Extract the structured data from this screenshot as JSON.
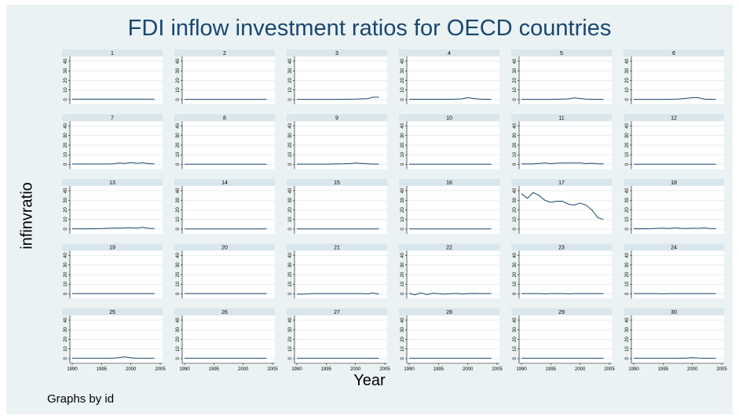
{
  "chart_data": {
    "type": "line",
    "title": "FDI inflow investment ratios for OECD countries",
    "xlabel": "Year",
    "ylabel": "infinvratio",
    "note": "Graphs by id",
    "xlim": [
      1990,
      2005
    ],
    "ylim": [
      0,
      40
    ],
    "x_ticks": [
      1990,
      1995,
      2000,
      2005
    ],
    "y_ticks": [
      0,
      10,
      20,
      30,
      40
    ],
    "grid": true,
    "line_color": "#1a476f",
    "panel_background": "#ffffff",
    "title_strip_color": "#d9e6eb",
    "background_color": "#eaf2f3",
    "years": [
      1990,
      1991,
      1992,
      1993,
      1994,
      1995,
      1996,
      1997,
      1998,
      1999,
      2000,
      2001,
      2002,
      2003,
      2004
    ],
    "panels": [
      {
        "id": "1",
        "values": [
          0.5,
          0.5,
          0.5,
          0.5,
          0.5,
          0.5,
          0.5,
          0.5,
          0.5,
          0.5,
          0.5,
          0.5,
          0.5,
          0.5,
          0.5
        ]
      },
      {
        "id": "2",
        "values": [
          0.3,
          0.3,
          0.3,
          0.3,
          0.3,
          0.3,
          0.3,
          0.3,
          0.3,
          0.3,
          0.3,
          0.3,
          0.3,
          0.3,
          0.3
        ]
      },
      {
        "id": "3",
        "values": [
          0.3,
          0.3,
          0.3,
          0.3,
          0.3,
          0.3,
          0.3,
          0.3,
          0.4,
          0.5,
          0.6,
          0.8,
          1,
          2.5,
          2.5
        ]
      },
      {
        "id": "4",
        "values": [
          0.4,
          0.4,
          0.4,
          0.4,
          0.4,
          0.4,
          0.4,
          0.4,
          0.6,
          0.8,
          2,
          1.2,
          0.6,
          0.4,
          0.4
        ]
      },
      {
        "id": "5",
        "values": [
          0.3,
          0.3,
          0.3,
          0.3,
          0.3,
          0.3,
          0.4,
          0.6,
          0.8,
          1.8,
          1.2,
          0.6,
          0.4,
          0.4,
          0.3
        ]
      },
      {
        "id": "6",
        "values": [
          0.3,
          0.3,
          0.3,
          0.3,
          0.3,
          0.3,
          0.4,
          0.5,
          0.8,
          1.5,
          2,
          2,
          0.6,
          0.4,
          0.3
        ]
      },
      {
        "id": "7",
        "values": [
          0.4,
          0.4,
          0.4,
          0.4,
          0.4,
          0.4,
          0.5,
          0.6,
          1.5,
          1,
          1.8,
          1,
          1.6,
          0.8,
          0.5
        ]
      },
      {
        "id": "8",
        "values": [
          0.2,
          0.2,
          0.2,
          0.2,
          0.2,
          0.2,
          0.2,
          0.2,
          0.2,
          0.2,
          0.2,
          0.2,
          0.2,
          0.2,
          0.2
        ]
      },
      {
        "id": "9",
        "values": [
          0.3,
          0.3,
          0.3,
          0.3,
          0.3,
          0.3,
          0.4,
          0.5,
          0.6,
          0.8,
          1.5,
          1,
          0.6,
          0.4,
          0.3
        ]
      },
      {
        "id": "10",
        "values": [
          0.2,
          0.2,
          0.2,
          0.2,
          0.2,
          0.2,
          0.2,
          0.2,
          0.2,
          0.2,
          0.2,
          0.2,
          0.2,
          0.2,
          0.2
        ]
      },
      {
        "id": "11",
        "values": [
          0.5,
          0.5,
          0.5,
          1,
          1.5,
          0.8,
          1.2,
          1.5,
          1.5,
          1.5,
          1.5,
          0.8,
          1.2,
          0.6,
          0.5
        ]
      },
      {
        "id": "12",
        "values": [
          0.2,
          0.2,
          0.2,
          0.2,
          0.2,
          0.2,
          0.2,
          0.2,
          0.2,
          0.2,
          0.2,
          0.2,
          0.2,
          0.2,
          0.2
        ]
      },
      {
        "id": "13",
        "values": [
          0.3,
          0.3,
          0.3,
          0.4,
          0.5,
          0.6,
          0.8,
          1,
          1,
          1.2,
          1.5,
          1,
          1.8,
          0.8,
          0.5
        ]
      },
      {
        "id": "14",
        "values": [
          0.2,
          0.2,
          0.2,
          0.2,
          0.2,
          0.2,
          0.2,
          0.2,
          0.2,
          0.2,
          0.2,
          0.2,
          0.2,
          0.2,
          0.2
        ]
      },
      {
        "id": "15",
        "values": [
          0.2,
          0.2,
          0.2,
          0.2,
          0.2,
          0.2,
          0.2,
          0.2,
          0.2,
          0.2,
          0.2,
          0.2,
          0.2,
          0.2,
          0.2
        ]
      },
      {
        "id": "16",
        "values": [
          0.2,
          0.2,
          0.2,
          0.2,
          0.2,
          0.2,
          0.2,
          0.2,
          0.2,
          0.2,
          0.2,
          0.2,
          0.2,
          0.2,
          0.2
        ]
      },
      {
        "id": "17",
        "values": [
          37,
          32,
          38,
          35,
          30,
          28,
          29,
          29,
          26,
          25,
          27,
          25,
          20,
          12,
          10
        ]
      },
      {
        "id": "18",
        "values": [
          0.4,
          0.4,
          0.4,
          0.5,
          0.8,
          1,
          0.6,
          1.2,
          0.8,
          0.6,
          1,
          0.8,
          1.2,
          0.6,
          0.4
        ]
      },
      {
        "id": "19",
        "values": [
          0.3,
          0.3,
          0.3,
          0.3,
          0.3,
          0.3,
          0.3,
          0.3,
          0.3,
          0.3,
          0.3,
          0.3,
          0.3,
          0.3,
          0.3
        ]
      },
      {
        "id": "20",
        "values": [
          0.3,
          0.3,
          0.3,
          0.3,
          0.3,
          0.3,
          0.3,
          0.3,
          0.3,
          0.3,
          0.3,
          0.3,
          0.3,
          0.3,
          0.3
        ]
      },
      {
        "id": "21",
        "values": [
          -0.3,
          -0.3,
          0,
          0.3,
          0.3,
          0.3,
          0.3,
          0.3,
          0.3,
          0.3,
          0.3,
          0.3,
          0,
          0.8,
          -0.3
        ]
      },
      {
        "id": "22",
        "values": [
          0.5,
          -1,
          1,
          -0.8,
          0.6,
          0.3,
          -0.3,
          0.2,
          0.4,
          -0.2,
          0.3,
          0.4,
          0.3,
          0.3,
          0.3
        ]
      },
      {
        "id": "23",
        "values": [
          0.3,
          0.3,
          0.3,
          0.3,
          0,
          0.3,
          0.3,
          0.3,
          0,
          0.3,
          0.3,
          0.3,
          0.3,
          0.3,
          0.3
        ]
      },
      {
        "id": "24",
        "values": [
          0.3,
          0.3,
          0.3,
          0.3,
          0.3,
          0,
          0.3,
          0.3,
          0.3,
          0.3,
          0.3,
          0.3,
          0.3,
          0.3,
          0.3
        ]
      },
      {
        "id": "25",
        "values": [
          0.3,
          0.3,
          0.3,
          0.3,
          0.3,
          0.3,
          0.3,
          0.5,
          1,
          1.8,
          0.8,
          0.4,
          0.3,
          0.3,
          0.3
        ]
      },
      {
        "id": "26",
        "values": [
          0.3,
          0.3,
          0.3,
          0.3,
          0.3,
          0.3,
          0.3,
          0.3,
          0.3,
          0.3,
          0.3,
          0.3,
          0.3,
          0.3,
          0.3
        ]
      },
      {
        "id": "27",
        "values": [
          0.3,
          0.3,
          0.3,
          0.3,
          0.3,
          0.3,
          0.3,
          0.3,
          0.3,
          0.3,
          0.3,
          0.3,
          0.3,
          0.3,
          0.3
        ]
      },
      {
        "id": "28",
        "values": [
          0.3,
          0.3,
          0.3,
          0.3,
          0.3,
          0.3,
          0.3,
          0.3,
          0.3,
          0.3,
          0.3,
          0.3,
          0.3,
          0.3,
          0.3
        ]
      },
      {
        "id": "29",
        "values": [
          0.3,
          0.3,
          0.3,
          0.3,
          0.3,
          0.3,
          0.3,
          0.3,
          0.3,
          0.3,
          0.3,
          0.3,
          0.3,
          0.3,
          0.3
        ]
      },
      {
        "id": "30",
        "values": [
          0.3,
          0.3,
          0.3,
          0.3,
          0.3,
          0.3,
          0.3,
          0.3,
          0.4,
          0.6,
          1,
          0.6,
          0.4,
          0.3,
          0.3
        ]
      }
    ]
  }
}
